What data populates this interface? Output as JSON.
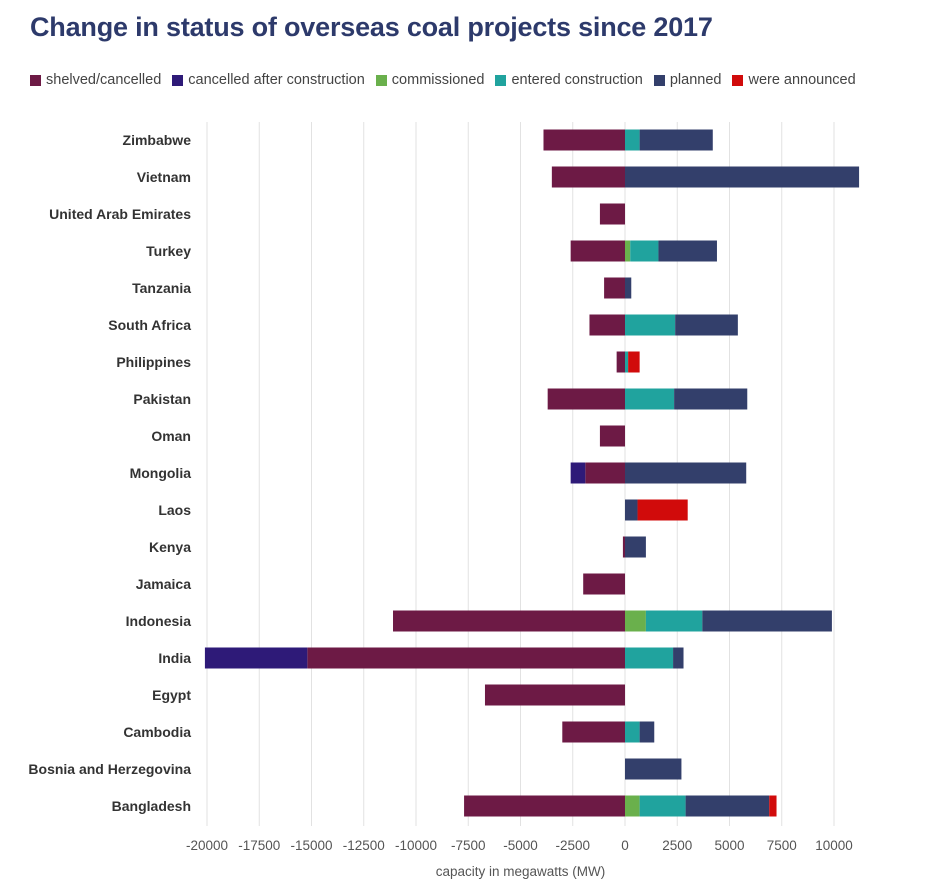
{
  "chart_data": {
    "type": "bar",
    "orientation": "horizontal",
    "stacked": true,
    "title": "Change in status of overseas coal projects since 2017",
    "xlabel": "capacity in megawatts (MW)",
    "ylabel": "",
    "xlim": [
      -20000,
      10000
    ],
    "xticks": [
      -20000,
      -17500,
      -15000,
      -12500,
      -10000,
      -7500,
      -5000,
      -2500,
      0,
      2500,
      5000,
      7500,
      10000
    ],
    "grid": "vertical",
    "legend_position": "top",
    "categories": [
      "Zimbabwe",
      "Vietnam",
      "United Arab Emirates",
      "Turkey",
      "Tanzania",
      "South Africa",
      "Philippines",
      "Pakistan",
      "Oman",
      "Mongolia",
      "Laos",
      "Kenya",
      "Jamaica",
      "Indonesia",
      "India",
      "Egypt",
      "Cambodia",
      "Bosnia and Herzegovina",
      "Bangladesh"
    ],
    "series": [
      {
        "name": "shelved/cancelled",
        "color": "#6d1a45",
        "values": [
          -3900,
          -3500,
          -1200,
          -2600,
          -1000,
          -1700,
          -400,
          -3700,
          -1200,
          -1900,
          0,
          -100,
          -2000,
          -11100,
          -15200,
          -6700,
          -3000,
          0,
          -7700
        ]
      },
      {
        "name": "cancelled after construction",
        "color": "#2e1a78",
        "values": [
          0,
          0,
          0,
          0,
          0,
          0,
          0,
          0,
          0,
          -700,
          0,
          0,
          0,
          0,
          -4900,
          0,
          0,
          0,
          0
        ]
      },
      {
        "name": "commissioned",
        "color": "#6ab04c",
        "values": [
          0,
          0,
          0,
          250,
          0,
          0,
          0,
          0,
          0,
          0,
          0,
          0,
          0,
          1000,
          0,
          0,
          0,
          0,
          700
        ]
      },
      {
        "name": "entered construction",
        "color": "#20a39e",
        "values": [
          700,
          0,
          0,
          1350,
          0,
          2400,
          150,
          2350,
          0,
          0,
          0,
          0,
          0,
          2700,
          2300,
          0,
          700,
          0,
          2200
        ]
      },
      {
        "name": "planned",
        "color": "#333f6b",
        "values": [
          3500,
          11200,
          0,
          2800,
          300,
          3000,
          0,
          3500,
          0,
          5800,
          600,
          1000,
          0,
          6200,
          500,
          0,
          700,
          2700,
          4000
        ]
      },
      {
        "name": "were announced",
        "color": "#d10b0b",
        "values": [
          0,
          0,
          0,
          0,
          0,
          0,
          550,
          0,
          0,
          0,
          2400,
          0,
          0,
          0,
          0,
          0,
          0,
          0,
          350
        ]
      }
    ]
  }
}
